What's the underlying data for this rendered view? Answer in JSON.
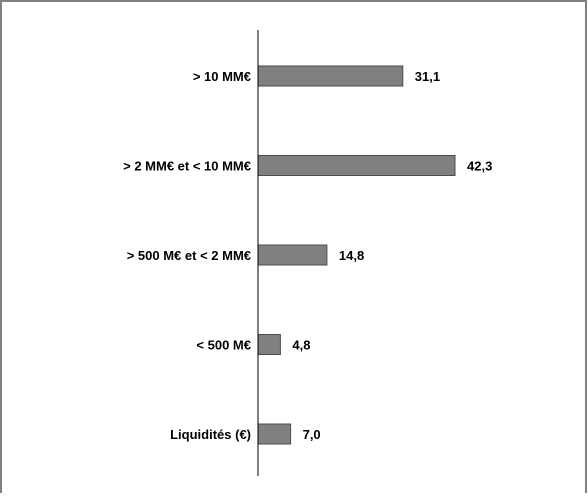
{
  "chart_data": {
    "type": "bar",
    "orientation": "horizontal",
    "categories": [
      "> 10 MM€",
      "> 2 MM€ et < 10 MM€",
      "> 500 M€ et < 2 MM€",
      "< 500 M€",
      "Liquidités (€)"
    ],
    "values": [
      31.1,
      42.3,
      14.8,
      4.8,
      7.0
    ],
    "value_labels": [
      "31,1",
      "42,3",
      "14,8",
      "4,8",
      "7,0"
    ],
    "title": "",
    "xlabel": "",
    "ylabel": "",
    "xlim": [
      0,
      55
    ],
    "grid": false,
    "legend": "none",
    "colors": {
      "bar_fill": "#808080",
      "bar_stroke": "#4d4d4d",
      "frame": "#808080",
      "axis": "#000000",
      "text": "#000000"
    }
  }
}
